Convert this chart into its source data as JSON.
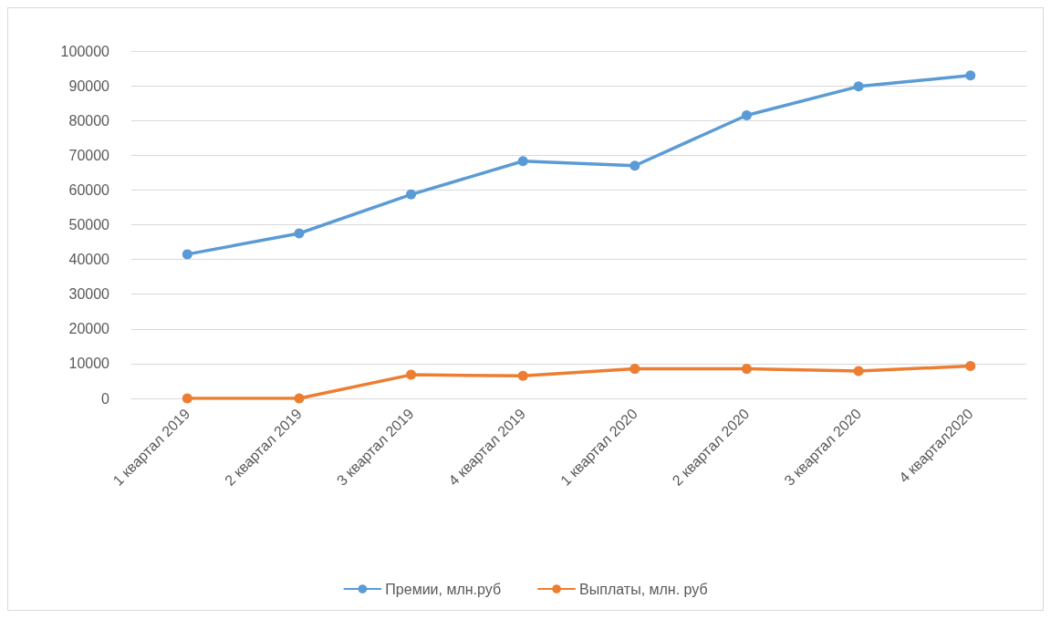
{
  "chart_data": {
    "type": "line",
    "categories": [
      "1 квартал 2019",
      "2 квартал 2019",
      "3 квартал 2019",
      "4 квартал 2019",
      "1 квартал 2020",
      "2 квартал 2020",
      "3 квартал 2020",
      "4 квартал2020"
    ],
    "series": [
      {
        "name": "Премии, млн.руб",
        "color": "#5b9bd5",
        "values": [
          41500,
          47500,
          58700,
          68300,
          67000,
          81500,
          89800,
          93000
        ]
      },
      {
        "name": "Выплаты, млн. руб",
        "color": "#ed7d31",
        "values": [
          0,
          0,
          6800,
          6500,
          8500,
          8500,
          7900,
          9300
        ]
      }
    ],
    "ylim": [
      0,
      100000
    ],
    "yticks": [
      0,
      10000,
      20000,
      30000,
      40000,
      50000,
      60000,
      70000,
      80000,
      90000,
      100000
    ],
    "grid": "y",
    "legend": "bottom",
    "marker": "circle",
    "line_style": "solid"
  }
}
